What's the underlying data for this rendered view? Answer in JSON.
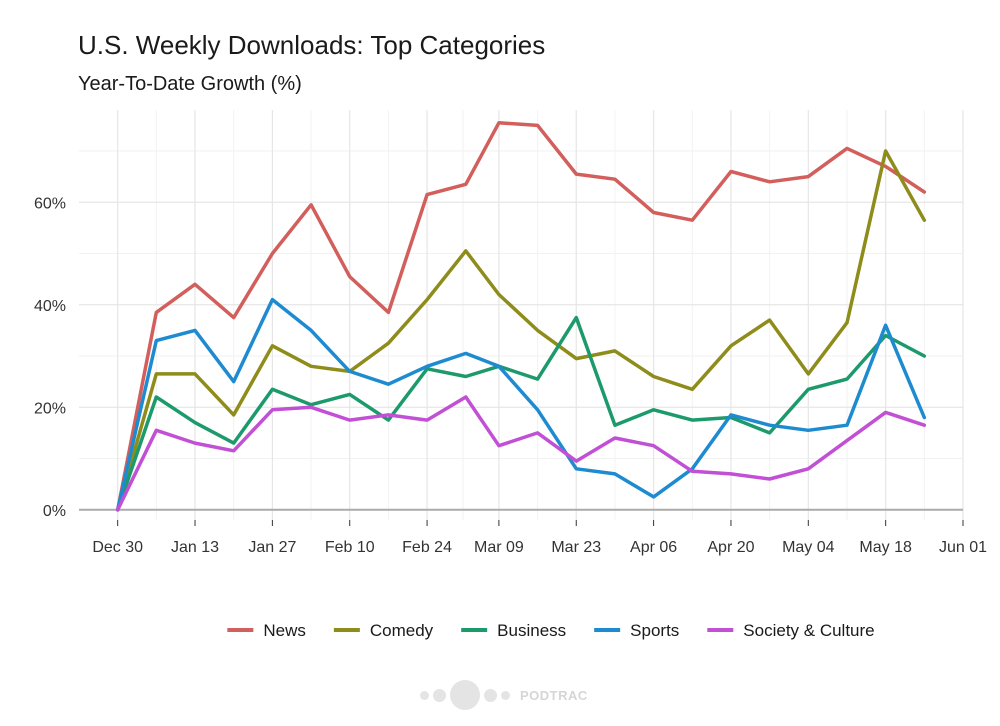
{
  "chart_data": {
    "type": "line",
    "title": "U.S. Weekly Downloads: Top Categories",
    "subtitle": "Year-To-Date Growth (%)",
    "xlabel": "",
    "ylabel": "",
    "x": [
      "2018-12-30",
      "2019-01-06",
      "2019-01-13",
      "2019-01-20",
      "2019-01-27",
      "2019-02-03",
      "2019-02-10",
      "2019-02-17",
      "2019-02-24",
      "2019-03-03",
      "2019-03-09",
      "2019-03-16",
      "2019-03-23",
      "2019-03-30",
      "2019-04-06",
      "2019-04-13",
      "2019-04-20",
      "2019-04-27",
      "2019-05-04",
      "2019-05-11",
      "2019-05-18",
      "2019-05-25"
    ],
    "x_ticks": [
      "2018-12-30",
      "2019-01-13",
      "2019-01-27",
      "2019-02-10",
      "2019-02-24",
      "2019-03-09",
      "2019-03-23",
      "2019-04-06",
      "2019-04-20",
      "2019-05-04",
      "2019-05-18",
      "2019-06-01"
    ],
    "x_tick_labels": [
      "Dec 30",
      "Jan 13",
      "Jan 27",
      "Feb 10",
      "Feb 24",
      "Mar 09",
      "Mar 23",
      "Apr 06",
      "Apr 20",
      "May 04",
      "May 18",
      "Jun 01"
    ],
    "xlim": [
      "2018-12-23",
      "2019-06-01"
    ],
    "y_ticks": [
      0,
      20,
      40,
      60
    ],
    "y_tick_labels": [
      "0%",
      "20%",
      "40%",
      "60%"
    ],
    "ylim": [
      -2,
      78
    ],
    "grid": true,
    "legend_position": "bottom",
    "series": [
      {
        "name": "News",
        "color": "#d25f5b",
        "values": [
          0,
          38.5,
          44,
          37.5,
          50,
          59.5,
          45.5,
          38.5,
          61.5,
          63.5,
          75.5,
          75,
          65.5,
          64.5,
          58,
          56.5,
          66,
          64,
          65,
          70.5,
          67,
          62
        ]
      },
      {
        "name": "Comedy",
        "color": "#8e8c1b",
        "values": [
          0,
          26.5,
          26.5,
          18.5,
          32,
          28,
          27,
          32.5,
          41,
          50.5,
          42,
          35,
          29.5,
          31,
          26,
          23.5,
          32,
          37,
          26.5,
          36.5,
          70,
          56.5
        ]
      },
      {
        "name": "Business",
        "color": "#1d9a6c",
        "values": [
          0,
          22,
          17,
          13,
          23.5,
          20.5,
          22.5,
          17.5,
          27.5,
          26,
          28,
          25.5,
          37.5,
          16.5,
          19.5,
          17.5,
          18,
          15,
          23.5,
          25.5,
          34,
          30
        ]
      },
      {
        "name": "Sports",
        "color": "#1e8bd1",
        "values": [
          0,
          33,
          35,
          25,
          41,
          35,
          27,
          24.5,
          28,
          30.5,
          28,
          19.5,
          8,
          7,
          2.5,
          8,
          18.5,
          16.5,
          15.5,
          16.5,
          36,
          18
        ]
      },
      {
        "name": "Society & Culture",
        "color": "#c150d5",
        "values": [
          0,
          15.5,
          13,
          11.5,
          19.5,
          20,
          17.5,
          18.5,
          17.5,
          22,
          12.5,
          15,
          9.5,
          14,
          12.5,
          7.5,
          7,
          6,
          8,
          13.5,
          19,
          16.5
        ]
      }
    ]
  },
  "watermark": {
    "text": "PODTRAC"
  }
}
